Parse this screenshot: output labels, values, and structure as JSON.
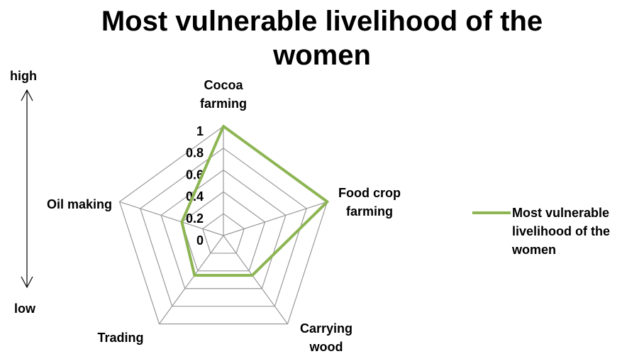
{
  "chart_data": {
    "type": "radar",
    "title": "Most vulnerable livelihood of the women",
    "categories": [
      "Cocoa farming",
      "Food crop farming",
      "Carrying wood",
      "Trading",
      "Oil making"
    ],
    "series": [
      {
        "name": "Most vulnerable livelihood of the women",
        "color": "#8db553",
        "values": [
          1,
          1,
          0.45,
          0.45,
          0.4
        ]
      }
    ],
    "rlim": [
      0,
      1
    ],
    "rticks": [
      0,
      0.2,
      0.4,
      0.6,
      0.8,
      1
    ],
    "grid": true,
    "legend": "right",
    "annotations": [
      "high",
      "low"
    ]
  }
}
